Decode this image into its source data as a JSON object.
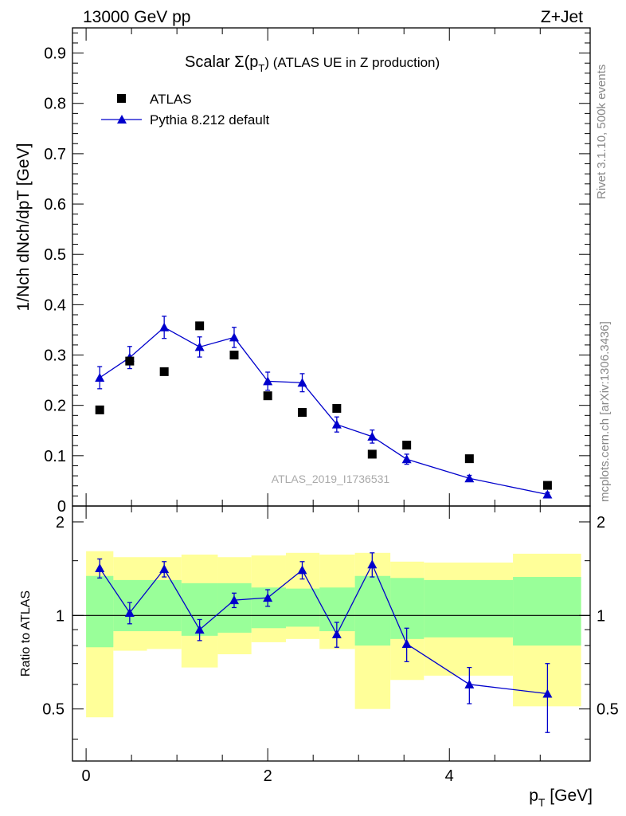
{
  "header": {
    "energy_label": "13000 GeV pp",
    "process_label": "Z+Jet"
  },
  "side": {
    "rivet_label": "Rivet 3.1.10,  500k events",
    "mcplots_label": "mcplots.cern.ch [arXiv:1306.3436]"
  },
  "chart_data": [
    {
      "type": "scatter",
      "title": "Scalar Σ(pT) (ATLAS UE in Z production)",
      "title_prefix": "Scalar Σ(p",
      "title_sub": "T",
      "title_suffix": ") (ATLAS UE in Z production)",
      "analysis_label": "ATLAS_2019_I1736531",
      "ylabel": "1/Nch dNch/dpT [GeV]",
      "ylim": [
        0,
        0.95
      ],
      "yticks": [
        0,
        0.1,
        0.2,
        0.3,
        0.4,
        0.5,
        0.6,
        0.7,
        0.8,
        0.9
      ],
      "ytick_labels": [
        "0",
        "0.1",
        "0.2",
        "0.3",
        "0.4",
        "0.5",
        "0.6",
        "0.7",
        "0.8",
        "0.9"
      ],
      "legend": [
        "ATLAS",
        "Pythia 8.212 default"
      ],
      "series": [
        {
          "name": "ATLAS",
          "marker": "square",
          "color": "#000000",
          "x": [
            0.15,
            0.48,
            0.86,
            1.25,
            1.63,
            2.0,
            2.38,
            2.76,
            3.15,
            3.53,
            4.22,
            5.08
          ],
          "y": [
            0.191,
            0.288,
            0.267,
            0.358,
            0.3,
            0.219,
            0.186,
            0.194,
            0.103,
            0.121,
            0.094,
            0.041
          ]
        },
        {
          "name": "Pythia 8.212 default",
          "marker": "triangle",
          "color": "#0000cc",
          "x": [
            0.15,
            0.48,
            0.86,
            1.25,
            1.63,
            2.0,
            2.38,
            2.76,
            3.15,
            3.53,
            4.22,
            5.08
          ],
          "y": [
            0.255,
            0.295,
            0.355,
            0.316,
            0.335,
            0.248,
            0.245,
            0.162,
            0.138,
            0.093,
            0.055,
            0.023
          ],
          "err": [
            0.022,
            0.022,
            0.022,
            0.02,
            0.02,
            0.018,
            0.018,
            0.015,
            0.013,
            0.01,
            0.006,
            0.004
          ]
        }
      ]
    },
    {
      "type": "scatter",
      "ylabel": "Ratio to ATLAS",
      "xlabel": "pT [GeV]",
      "xlim": [
        -0.15,
        5.55
      ],
      "ylim": [
        0.34,
        2.25
      ],
      "yticks": [
        0.5,
        1,
        2
      ],
      "ytick_labels": [
        "0.5",
        "1",
        "2"
      ],
      "xticks": [
        0,
        2,
        4
      ],
      "xtick_labels": [
        "0",
        "2",
        "4"
      ],
      "reference_line": 1,
      "bands": {
        "bin_edges": [
          0,
          0.3,
          0.67,
          1.05,
          1.45,
          1.82,
          2.2,
          2.57,
          2.96,
          3.35,
          3.72,
          4.7,
          5.45
        ],
        "yellow_low": [
          0.47,
          0.77,
          0.78,
          0.68,
          0.75,
          0.82,
          0.84,
          0.78,
          0.5,
          0.62,
          0.64,
          0.51
        ],
        "yellow_high": [
          1.61,
          1.54,
          1.54,
          1.57,
          1.54,
          1.56,
          1.59,
          1.57,
          1.59,
          1.49,
          1.48,
          1.58
        ],
        "green_low": [
          0.79,
          0.89,
          0.89,
          0.86,
          0.88,
          0.91,
          0.92,
          0.89,
          0.8,
          0.84,
          0.85,
          0.8
        ],
        "green_high": [
          1.34,
          1.3,
          1.3,
          1.27,
          1.27,
          1.23,
          1.22,
          1.23,
          1.34,
          1.32,
          1.3,
          1.33
        ]
      },
      "series": [
        {
          "name": "Pythia 8.212 default",
          "color": "#0000cc",
          "x": [
            0.15,
            0.48,
            0.86,
            1.25,
            1.63,
            2.0,
            2.38,
            2.76,
            3.15,
            3.53,
            4.22,
            5.08
          ],
          "y": [
            1.42,
            1.02,
            1.41,
            0.9,
            1.12,
            1.14,
            1.4,
            0.87,
            1.46,
            0.81,
            0.6,
            0.56
          ],
          "err": [
            0.1,
            0.08,
            0.08,
            0.07,
            0.06,
            0.07,
            0.09,
            0.08,
            0.13,
            0.1,
            0.08,
            0.14
          ]
        }
      ]
    }
  ]
}
